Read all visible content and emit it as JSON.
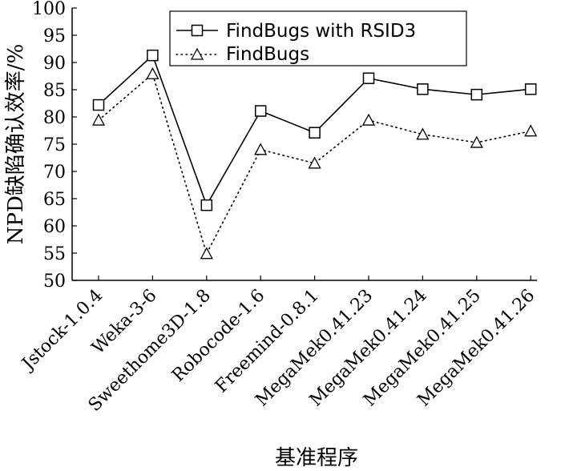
{
  "chart_data": {
    "type": "line",
    "title": "",
    "xlabel": "基准程序",
    "ylabel": "NPD缺陷确认效率/%",
    "ylim": [
      50,
      100
    ],
    "yticks": [
      50,
      55,
      60,
      65,
      70,
      75,
      80,
      85,
      90,
      95,
      100
    ],
    "categories": [
      "Jstock-1.0.4",
      "Weka-3-6",
      "Sweethome3D-1.8",
      "Robocode-1.6",
      "Freemind-0.8.1",
      "MegaMek0.41.23",
      "MegaMek0.41.24",
      "MegaMek0.41.25",
      "MegaMek0.41.26"
    ],
    "series": [
      {
        "name": "FindBugs with RSID3",
        "marker": "square",
        "line": "solid",
        "values": [
          82.2,
          91.3,
          63.8,
          81.1,
          77.1,
          87.1,
          85.1,
          84.1,
          85.1
        ]
      },
      {
        "name": "FindBugs",
        "marker": "triangle",
        "line": "dotted",
        "values": [
          79.4,
          87.9,
          54.9,
          74.0,
          71.5,
          79.4,
          76.8,
          75.3,
          77.4
        ]
      }
    ],
    "legend_position": "top-right",
    "grid": false
  }
}
